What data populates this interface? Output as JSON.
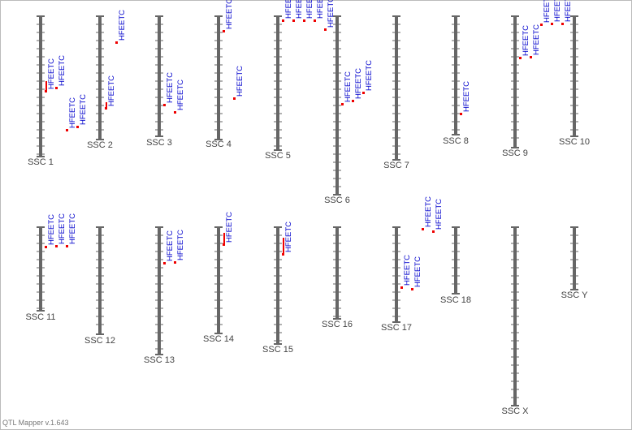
{
  "chromosomes": [
    {
      "name": "SSC 1",
      "qtls": [
        "HFEETC",
        "HFEETC",
        "HFEETC",
        "HFEETC"
      ]
    },
    {
      "name": "SSC 2",
      "qtls": [
        "HFEETC",
        "HFEETC"
      ]
    },
    {
      "name": "SSC 3",
      "qtls": [
        "HFEETC",
        "HFEETC"
      ]
    },
    {
      "name": "SSC 4",
      "qtls": [
        "HFEETC",
        "HFEETC"
      ]
    },
    {
      "name": "SSC 5",
      "qtls": [
        "HFEETC",
        "HFEETC",
        "HFEETC",
        "HFEETC",
        "HFEETC"
      ]
    },
    {
      "name": "SSC 6",
      "qtls": [
        "HFEETC",
        "HFEETC",
        "HFEETC"
      ]
    },
    {
      "name": "SSC 7",
      "qtls": []
    },
    {
      "name": "SSC 8",
      "qtls": [
        "HFEETC"
      ]
    },
    {
      "name": "SSC 9",
      "qtls": [
        "HFEETC",
        "HFEETC"
      ]
    },
    {
      "name": "SSC 10",
      "qtls": [
        "HFEETC",
        "HFEETC",
        "HFEETC"
      ]
    },
    {
      "name": "SSC 11",
      "qtls": [
        "HFEETC",
        "HFEETC",
        "HFEETC"
      ]
    },
    {
      "name": "SSC 12",
      "qtls": []
    },
    {
      "name": "SSC 13",
      "qtls": [
        "HFEETC",
        "HFEETC"
      ]
    },
    {
      "name": "SSC 14",
      "qtls": [
        "HFEETC"
      ]
    },
    {
      "name": "SSC 15",
      "qtls": [
        "HFEETC"
      ]
    },
    {
      "name": "SSC 16",
      "qtls": []
    },
    {
      "name": "SSC 17",
      "qtls": [
        "HFEETC",
        "HFEETC",
        "HFEETC",
        "HFEETC"
      ]
    },
    {
      "name": "SSC 18",
      "qtls": []
    },
    {
      "name": "SSC X",
      "qtls": []
    },
    {
      "name": "SSC Y",
      "qtls": []
    }
  ],
  "footer": "QTL Mapper v.1.643"
}
